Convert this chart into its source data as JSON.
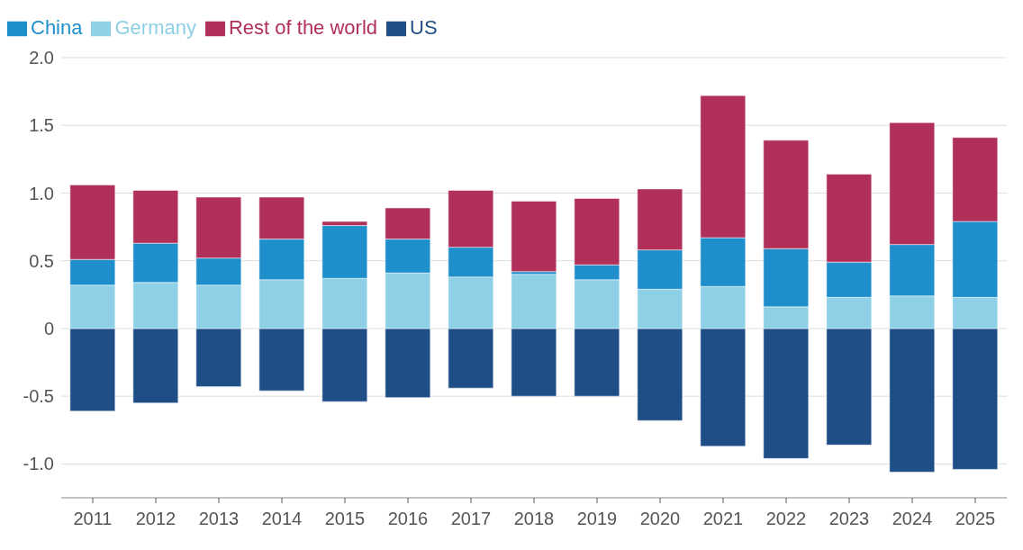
{
  "chart_data": {
    "type": "bar",
    "stacked": true,
    "categories": [
      "2011",
      "2012",
      "2013",
      "2014",
      "2015",
      "2016",
      "2017",
      "2018",
      "2019",
      "2020",
      "2021",
      "2022",
      "2023",
      "2024",
      "2025"
    ],
    "series": [
      {
        "name": "US",
        "color": "#1f4e86",
        "values": [
          -0.61,
          -0.55,
          -0.43,
          -0.46,
          -0.54,
          -0.51,
          -0.44,
          -0.5,
          -0.5,
          -0.68,
          -0.87,
          -0.96,
          -0.86,
          -1.06,
          -1.04
        ]
      },
      {
        "name": "Germany",
        "color": "#8ed0e6",
        "values": [
          0.32,
          0.34,
          0.32,
          0.36,
          0.37,
          0.41,
          0.38,
          0.4,
          0.36,
          0.29,
          0.31,
          0.16,
          0.23,
          0.24,
          0.23
        ]
      },
      {
        "name": "China",
        "color": "#1f8fcc",
        "values": [
          0.19,
          0.29,
          0.2,
          0.3,
          0.39,
          0.25,
          0.22,
          0.02,
          0.11,
          0.29,
          0.36,
          0.43,
          0.26,
          0.38,
          0.56
        ]
      },
      {
        "name": "Rest of the world",
        "color": "#b0305a",
        "values": [
          0.55,
          0.39,
          0.45,
          0.31,
          0.03,
          0.23,
          0.42,
          0.52,
          0.49,
          0.45,
          1.05,
          0.8,
          0.65,
          0.9,
          0.62
        ]
      }
    ],
    "ylim": [
      -1.25,
      2.0
    ],
    "yticks": [
      {
        "value": -1,
        "label": "-1.0"
      },
      -0.5,
      0,
      0.5,
      {
        "value": 1,
        "label": "1.0"
      },
      1.5,
      {
        "value": 2,
        "label": "2.0"
      }
    ],
    "grid": "y",
    "legend": "top left"
  }
}
